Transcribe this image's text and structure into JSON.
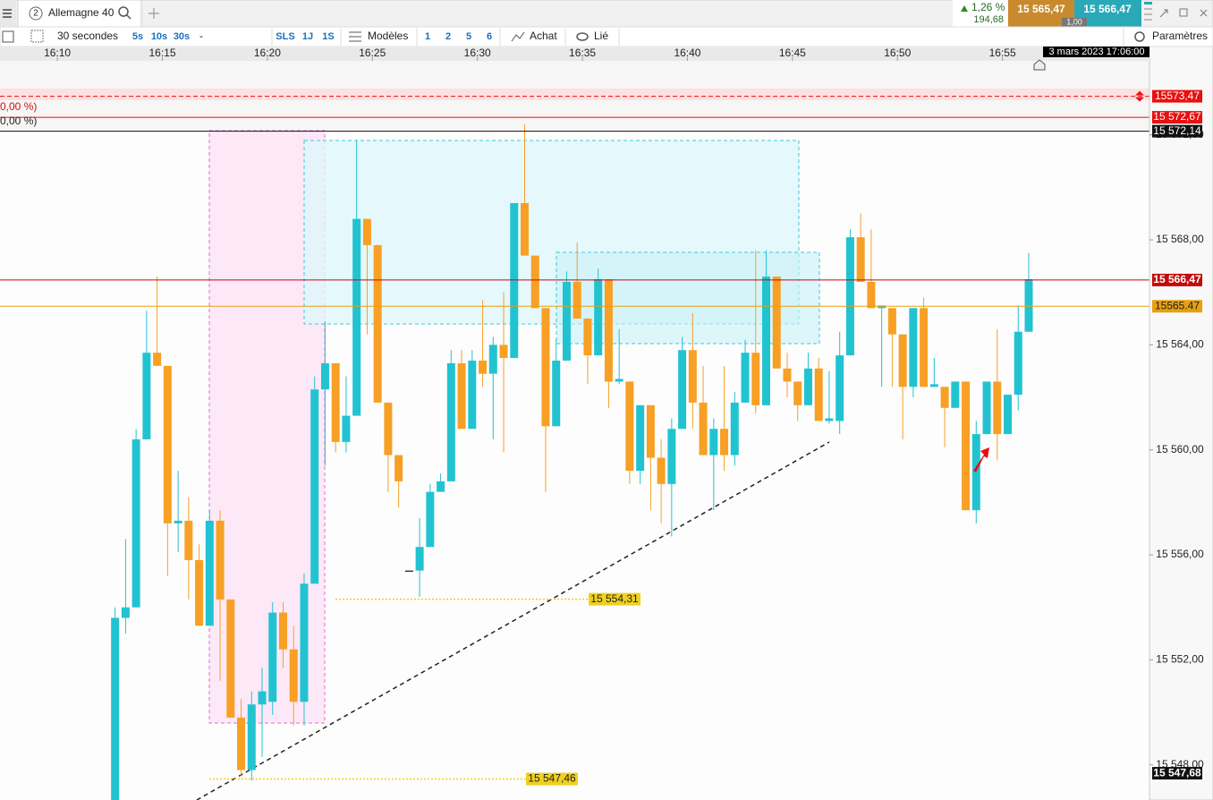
{
  "header": {
    "instrument_number": "2",
    "instrument": "Allemagne 40",
    "change": "1,26 %",
    "change_points": "194,68",
    "bid": "15 565,47",
    "ask": "15 566,47",
    "spread": "1,00"
  },
  "toolbar": {
    "interval": "30 secondes",
    "buttons": [
      "5s",
      "10s",
      "30s",
      "-",
      "SLS",
      "1J",
      "1S"
    ],
    "models": "Modèles",
    "counts": [
      "1",
      "2",
      "5",
      "6"
    ],
    "buy": "Achat",
    "linked": "Lié",
    "settings": "Paramètres"
  },
  "chart_data": {
    "type": "candlestick",
    "up_color": "#22c3d1",
    "down_color": "#f7a025",
    "cursor_time": "3 mars 2023 17:06:00",
    "xlim": [
      7.27,
      62.0
    ],
    "xticks": [
      {
        "value": 10,
        "label": "16:10"
      },
      {
        "value": 15,
        "label": "16:15"
      },
      {
        "value": 20,
        "label": "16:20"
      },
      {
        "value": 25,
        "label": "16:25"
      },
      {
        "value": 30,
        "label": "16:30"
      },
      {
        "value": 35,
        "label": "16:35"
      },
      {
        "value": 40,
        "label": "16:40"
      },
      {
        "value": 45,
        "label": "16:45"
      },
      {
        "value": 50,
        "label": "16:50"
      },
      {
        "value": 55,
        "label": "16:55"
      }
    ],
    "ylim": [
      15546.66,
      15574.82
    ],
    "yticks": [
      {
        "value": 15548,
        "label": "15 548,00"
      },
      {
        "value": 15552,
        "label": "15 552,00"
      },
      {
        "value": 15556,
        "label": "15 556,00"
      },
      {
        "value": 15560,
        "label": "15 560,00"
      },
      {
        "value": 15564,
        "label": "15 564,00"
      },
      {
        "value": 15568,
        "label": "15 568,00"
      },
      {
        "value": 15572,
        "label": "15 572,00"
      }
    ],
    "open": [
      15546.5,
      15553.6,
      15554.0,
      15560.4,
      15563.7,
      15563.2,
      15557.2,
      15557.3,
      15555.8,
      15553.3,
      15557.3,
      15554.3,
      15549.8,
      15547.8,
      15550.3,
      15550.4,
      15553.8,
      15552.4,
      15550.4,
      15554.9,
      15562.3,
      15563.3,
      15560.3,
      15561.3,
      15568.8,
      15567.8,
      15561.8,
      15559.8,
      15555.4,
      15555.4,
      15556.3,
      15558.4,
      15558.8,
      15563.3,
      15560.8,
      15563.4,
      15562.9,
      15564.0,
      15563.5,
      15569.4,
      15567.4,
      15565.4,
      15560.9,
      15563.4,
      15566.4,
      15565.0,
      15563.6,
      15566.5,
      15562.6,
      15562.6,
      15559.2,
      15561.7,
      15559.7,
      15558.7,
      15560.8,
      15563.8,
      15561.8,
      15559.8,
      15560.8,
      15559.8,
      15561.8,
      15563.7,
      15561.7,
      15566.6,
      15563.1,
      15562.6,
      15561.7,
      15563.1,
      15561.1,
      15561.1,
      15563.6,
      15568.1,
      15566.4,
      15565.4,
      15565.4,
      15564.4,
      15562.4,
      15565.4,
      15562.4,
      15562.4,
      15561.6,
      15562.6,
      15557.7,
      15560.6,
      15562.6,
      15560.6,
      15562.1,
      15564.5
    ],
    "high": [
      15554.0,
      15556.6,
      15560.8,
      15565.3,
      15566.6,
      15563.2,
      15559.2,
      15558.2,
      15556.4,
      15557.7,
      15557.7,
      15554.3,
      15550.5,
      15550.8,
      15551.7,
      15554.2,
      15554.2,
      15553.3,
      15555.3,
      15562.8,
      15564.9,
      15563.3,
      15562.8,
      15571.8,
      15568.8,
      15567.8,
      15561.8,
      15559.8,
      15555.4,
      15557.4,
      15558.7,
      15559.1,
      15563.8,
      15563.8,
      15563.8,
      15565.7,
      15564.3,
      15566.0,
      15569.4,
      15572.4,
      15567.4,
      15565.4,
      15564.2,
      15566.8,
      15567.9,
      15565.0,
      15566.9,
      15566.5,
      15564.6,
      15562.6,
      15561.7,
      15561.7,
      15560.4,
      15561.2,
      15564.3,
      15565.2,
      15563.2,
      15561.2,
      15563.2,
      15562.2,
      15564.2,
      15567.6,
      15567.6,
      15566.6,
      15563.7,
      15562.6,
      15563.7,
      15563.5,
      15563.0,
      15564.5,
      15568.4,
      15569.0,
      15568.4,
      15565.5,
      15565.4,
      15564.4,
      15565.4,
      15565.8,
      15563.5,
      15562.4,
      15562.6,
      15562.6,
      15561.1,
      15562.6,
      15564.6,
      15562.1,
      15565.5,
      15567.5
    ],
    "low": [
      15546.5,
      15553.0,
      15554.0,
      15560.4,
      15563.2,
      15555.2,
      15556.1,
      15554.3,
      15553.3,
      15553.3,
      15551.2,
      15549.8,
      15547.6,
      15547.4,
      15548.3,
      15549.9,
      15551.7,
      15549.5,
      15549.5,
      15554.9,
      15559.4,
      15559.9,
      15559.9,
      15561.3,
      15564.4,
      15561.8,
      15558.4,
      15557.8,
      15555.4,
      15554.4,
      15556.3,
      15558.4,
      15558.8,
      15560.8,
      15560.8,
      15562.4,
      15560.4,
      15559.9,
      15563.5,
      15567.4,
      15565.4,
      15558.4,
      15560.9,
      15563.4,
      15565.0,
      15562.5,
      15563.6,
      15561.6,
      15562.5,
      15558.7,
      15558.7,
      15557.7,
      15557.2,
      15556.7,
      15560.8,
      15560.8,
      15559.8,
      15557.7,
      15559.2,
      15559.4,
      15561.8,
      15561.4,
      15561.7,
      15563.1,
      15562.0,
      15561.1,
      15561.7,
      15561.1,
      15561.0,
      15560.6,
      15563.6,
      15566.4,
      15565.4,
      15562.4,
      15562.4,
      15560.4,
      15562.0,
      15562.4,
      15562.4,
      15560.1,
      15561.6,
      15557.7,
      15557.2,
      15560.6,
      15559.6,
      15560.6,
      15561.5,
      15564.5
    ],
    "close": [
      15553.6,
      15554.0,
      15560.4,
      15563.7,
      15563.2,
      15557.2,
      15557.3,
      15555.8,
      15553.3,
      15557.3,
      15554.3,
      15549.8,
      15547.8,
      15550.3,
      15550.8,
      15553.8,
      15552.4,
      15550.4,
      15554.9,
      15562.3,
      15563.3,
      15560.3,
      15561.3,
      15568.8,
      15567.8,
      15561.8,
      15559.8,
      15558.8,
      15555.4,
      15556.3,
      15558.4,
      15558.8,
      15563.3,
      15560.8,
      15563.4,
      15562.9,
      15564.0,
      15563.5,
      15569.4,
      15567.4,
      15565.4,
      15560.9,
      15563.4,
      15566.4,
      15565.0,
      15563.6,
      15566.5,
      15562.6,
      15562.7,
      15559.2,
      15561.7,
      15559.7,
      15558.7,
      15560.8,
      15563.8,
      15561.8,
      15559.8,
      15560.8,
      15559.8,
      15561.8,
      15563.7,
      15561.7,
      15566.6,
      15563.1,
      15562.6,
      15561.7,
      15563.1,
      15561.1,
      15561.2,
      15563.6,
      15568.1,
      15566.4,
      15565.4,
      15565.5,
      15564.4,
      15562.4,
      15565.4,
      15562.4,
      15562.5,
      15561.6,
      15562.6,
      15557.7,
      15560.6,
      15562.6,
      15560.6,
      15562.1,
      15564.5,
      15566.5
    ],
    "levels": [
      {
        "value": 15573.47,
        "label": "15573,47",
        "color": "#e81010",
        "style": "dashed"
      },
      {
        "value": 15572.67,
        "label": "15 572,67",
        "color": "#e81010",
        "style": "solid"
      },
      {
        "value": 15572.14,
        "label": "15 572,14",
        "color": "#111111",
        "style": "solid"
      },
      {
        "value": 15566.47,
        "label": "15 566,47",
        "color": "#c40a0a",
        "style": "solid"
      },
      {
        "value": 15565.47,
        "label": "15565.47",
        "color": "#e8a010",
        "style": "solid"
      },
      {
        "value": 15554.31,
        "label": "15 554,31",
        "color": "#f0d020",
        "style": "dotted"
      },
      {
        "value": 15547.46,
        "label": "15 547,46",
        "color": "#f0d020",
        "style": "dotted"
      },
      {
        "value": 15547.68,
        "label": "15 547,68",
        "color": "#111111",
        "style": "none"
      }
    ],
    "percent_labels": [
      "0,00 %)",
      "0,00 %)"
    ]
  }
}
